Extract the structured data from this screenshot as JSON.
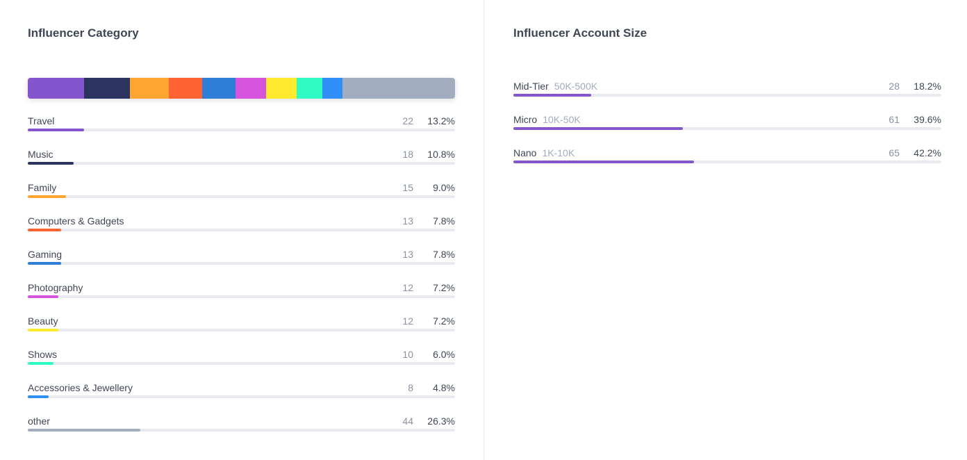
{
  "category_panel": {
    "title": "Influencer Category"
  },
  "size_panel": {
    "title": "Influencer Account Size"
  },
  "chart_data": [
    {
      "type": "bar",
      "title": "Influencer Category",
      "categories": [
        "Travel",
        "Music",
        "Family",
        "Computers & Gadgets",
        "Gaming",
        "Photography",
        "Beauty",
        "Shows",
        "Accessories & Jewellery",
        "other"
      ],
      "counts": [
        22,
        18,
        15,
        13,
        13,
        12,
        12,
        10,
        8,
        44
      ],
      "values": [
        13.2,
        10.8,
        9.0,
        7.8,
        7.8,
        7.2,
        7.2,
        6.0,
        4.8,
        26.3
      ],
      "percent_labels": [
        "13.2%",
        "10.8%",
        "9.0%",
        "7.8%",
        "7.8%",
        "7.2%",
        "7.2%",
        "6.0%",
        "4.8%",
        "26.3%"
      ],
      "colors": [
        "#8455cc",
        "#2b3461",
        "#ffa42e",
        "#ff6331",
        "#2f7dd6",
        "#d654dc",
        "#ffe92e",
        "#2efcc3",
        "#2f8ff7",
        "#a2aec0"
      ],
      "max_value": 100
    },
    {
      "type": "bar",
      "title": "Influencer Account Size",
      "categories": [
        "Mid-Tier",
        "Micro",
        "Nano"
      ],
      "ranges": [
        "50K-500K",
        "10K-50K",
        "1K-10K"
      ],
      "counts": [
        28,
        61,
        65
      ],
      "values": [
        18.2,
        39.6,
        42.2
      ],
      "percent_labels": [
        "18.2%",
        "39.6%",
        "42.2%"
      ],
      "color": "#8455cc",
      "max_value": 100
    }
  ]
}
